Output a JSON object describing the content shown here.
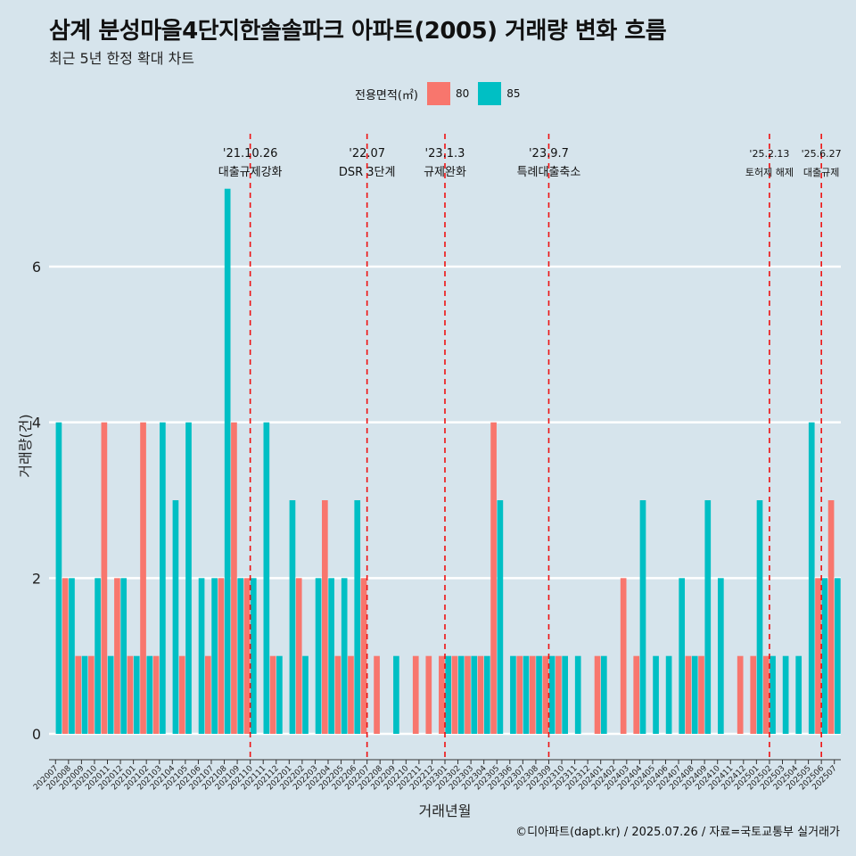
{
  "chart_data": {
    "type": "bar",
    "title": "삼계 분성마을4단지한솔솔파크 아파트(2005) 거래량 변화 흐름",
    "subtitle": "최근 5년 한정 확대 차트",
    "xlabel": "거래년월",
    "ylabel": "거래량(건)",
    "ylim": [
      0,
      7
    ],
    "yticks": [
      0,
      2,
      4,
      6
    ],
    "legend_title": "전용면적(㎡)",
    "legend_position": "top",
    "categories": [
      "202007",
      "202008",
      "202009",
      "202010",
      "202011",
      "202012",
      "202101",
      "202102",
      "202103",
      "202104",
      "202105",
      "202106",
      "202107",
      "202108",
      "202109",
      "202110",
      "202111",
      "202112",
      "202201",
      "202202",
      "202203",
      "202204",
      "202205",
      "202206",
      "202207",
      "202208",
      "202209",
      "202210",
      "202211",
      "202212",
      "202301",
      "202302",
      "202303",
      "202304",
      "202305",
      "202306",
      "202307",
      "202308",
      "202309",
      "202310",
      "202311",
      "202312",
      "202401",
      "202402",
      "202403",
      "202404",
      "202405",
      "202406",
      "202407",
      "202408",
      "202409",
      "202410",
      "202411",
      "202412",
      "202501",
      "202502",
      "202503",
      "202504",
      "202505",
      "202506",
      "202507"
    ],
    "series": [
      {
        "name": "80",
        "color": "#f8766d",
        "values": [
          0,
          2,
          1,
          1,
          4,
          2,
          1,
          4,
          1,
          0,
          1,
          0,
          1,
          2,
          4,
          2,
          0,
          1,
          0,
          2,
          0,
          3,
          1,
          1,
          2,
          1,
          0,
          0,
          1,
          1,
          1,
          1,
          1,
          1,
          4,
          0,
          1,
          1,
          1,
          1,
          0,
          0,
          1,
          0,
          2,
          1,
          0,
          0,
          0,
          1,
          1,
          0,
          0,
          1,
          1,
          1,
          0,
          0,
          0,
          2,
          3
        ]
      },
      {
        "name": "85",
        "color": "#00bfc4",
        "values": [
          4,
          2,
          1,
          2,
          1,
          2,
          1,
          1,
          4,
          3,
          4,
          2,
          2,
          7,
          2,
          2,
          4,
          1,
          3,
          1,
          2,
          2,
          2,
          3,
          0,
          0,
          1,
          0,
          0,
          0,
          1,
          1,
          1,
          1,
          3,
          1,
          1,
          1,
          1,
          1,
          1,
          0,
          1,
          0,
          0,
          3,
          1,
          1,
          2,
          1,
          3,
          2,
          0,
          0,
          3,
          1,
          1,
          1,
          4,
          2,
          2
        ]
      }
    ],
    "annotations": [
      {
        "label_date": "'21.10.26",
        "label_text": "대출규제강화",
        "x_index": 15.5
      },
      {
        "label_date": "'22.07",
        "label_text": "DSR 3단계",
        "x_index": 24.5
      },
      {
        "label_date": "'23.1.3",
        "label_text": "규제완화",
        "x_index": 30.5
      },
      {
        "label_date": "'23.9.7",
        "label_text": "특례대출축소",
        "x_index": 38.5
      },
      {
        "label_date": "'25.2.13",
        "label_text": "토허제 해제",
        "x_index": 55.5
      },
      {
        "label_date": "'25.6.27",
        "label_text": "대출규제",
        "x_index": 59.5
      }
    ]
  },
  "caption": "©디아파트(dapt.kr) / 2025.07.26 / 자료=국토교통부 실거래가"
}
